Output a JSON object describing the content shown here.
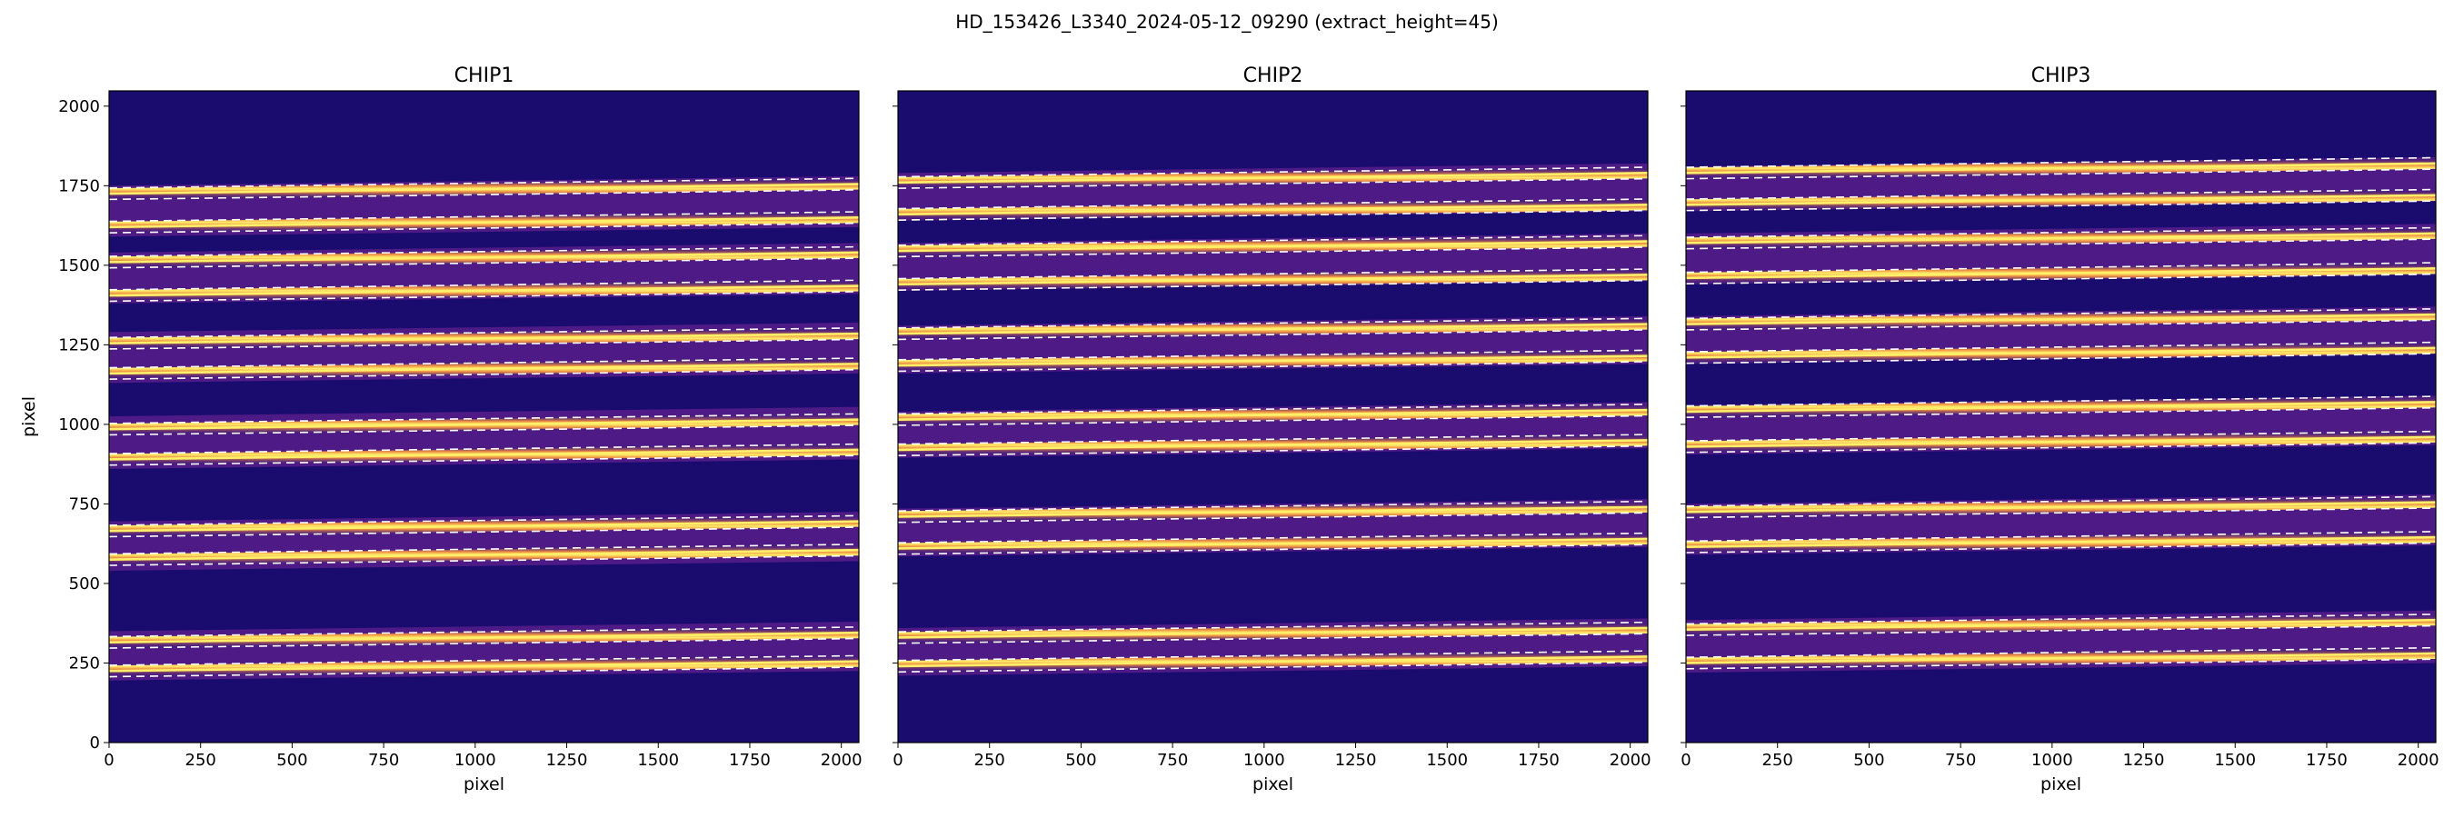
{
  "figure": {
    "suptitle": "HD_153426_L3340_2024-05-12_09290  (extract_height=45)"
  },
  "colors": {
    "background": "#1a0b6e",
    "bright_trace": "#fff06a",
    "trace_glow": "#ff9a3c",
    "faint_band": "#7a2a9a",
    "boundary_dash": "#ffffff"
  },
  "chart_data": [
    {
      "type": "heatmap",
      "title": "CHIP1",
      "xlabel": "pixel",
      "ylabel": "pixel",
      "xlim": [
        0,
        2048
      ],
      "ylim": [
        0,
        2048
      ],
      "xticks": [
        0,
        250,
        500,
        750,
        1000,
        1250,
        1500,
        1750,
        2000
      ],
      "yticks": [
        0,
        250,
        500,
        750,
        1000,
        1250,
        1500,
        1750,
        2000
      ],
      "colormap": "plasma",
      "orders": [
        {
          "lower": 195,
          "upper": 350,
          "traces": [
            225,
            315
          ]
        },
        {
          "lower": 540,
          "upper": 695,
          "traces": [
            575,
            665
          ]
        },
        {
          "lower": 860,
          "upper": 1025,
          "traces": [
            890,
            985
          ]
        },
        {
          "lower": 1130,
          "upper": 1290,
          "traces": [
            1160,
            1255
          ]
        },
        {
          "lower": 1380,
          "upper": 1540,
          "traces": [
            1405,
            1510
          ]
        },
        {
          "lower": 1590,
          "upper": 1750,
          "traces": [
            1620,
            1725
          ]
        }
      ]
    },
    {
      "type": "heatmap",
      "title": "CHIP2",
      "xlabel": "pixel",
      "ylabel": "",
      "xlim": [
        0,
        2048
      ],
      "ylim": [
        0,
        2048
      ],
      "xticks": [
        0,
        250,
        500,
        750,
        1000,
        1250,
        1500,
        1750,
        2000
      ],
      "yticks": [
        0,
        250,
        500,
        750,
        1000,
        1250,
        1500,
        1750,
        2000
      ],
      "colormap": "plasma",
      "orders": [
        {
          "lower": 210,
          "upper": 360,
          "traces": [
            240,
            330
          ]
        },
        {
          "lower": 585,
          "upper": 735,
          "traces": [
            610,
            710
          ]
        },
        {
          "lower": 895,
          "upper": 1040,
          "traces": [
            920,
            1015
          ]
        },
        {
          "lower": 1160,
          "upper": 1310,
          "traces": [
            1185,
            1285
          ]
        },
        {
          "lower": 1420,
          "upper": 1570,
          "traces": [
            1440,
            1545
          ]
        },
        {
          "lower": 1640,
          "upper": 1790,
          "traces": [
            1660,
            1760
          ]
        }
      ]
    },
    {
      "type": "heatmap",
      "title": "CHIP3",
      "xlabel": "pixel",
      "ylabel": "",
      "xlim": [
        0,
        2048
      ],
      "ylim": [
        0,
        2048
      ],
      "xticks": [
        0,
        250,
        500,
        750,
        1000,
        1250,
        1500,
        1750,
        2000
      ],
      "yticks": [
        0,
        250,
        500,
        750,
        1000,
        1250,
        1500,
        1750,
        2000
      ],
      "colormap": "plasma",
      "orders": [
        {
          "lower": 220,
          "upper": 385,
          "traces": [
            250,
            355
          ]
        },
        {
          "lower": 590,
          "upper": 750,
          "traces": [
            615,
            725
          ]
        },
        {
          "lower": 905,
          "upper": 1060,
          "traces": [
            930,
            1040
          ]
        },
        {
          "lower": 1190,
          "upper": 1340,
          "traces": [
            1210,
            1315
          ]
        },
        {
          "lower": 1440,
          "upper": 1600,
          "traces": [
            1460,
            1570
          ]
        },
        {
          "lower": 1670,
          "upper": 1810,
          "traces": [
            1690,
            1790
          ]
        }
      ]
    }
  ]
}
